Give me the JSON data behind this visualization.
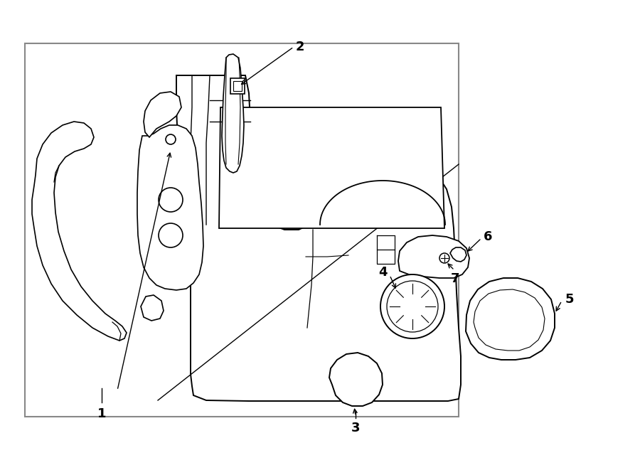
{
  "bg_color": "#ffffff",
  "line_color": "#000000",
  "border_color": "#cccccc",
  "fig_width": 9.0,
  "fig_height": 6.61,
  "dpi": 100
}
